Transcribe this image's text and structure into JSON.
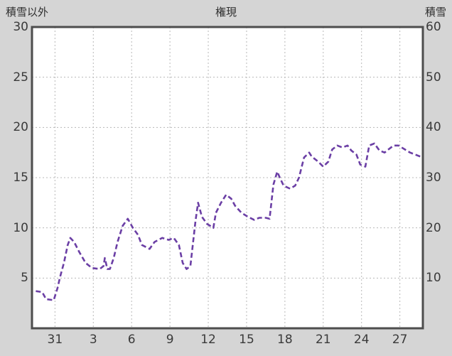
{
  "labels": {
    "left_axis": "積雪以外",
    "title": "権現",
    "right_axis": "積雪"
  },
  "colors": {
    "page_background": "#d5d5d5",
    "plot_background": "#ffffff",
    "frame": "#4d4d4d",
    "grid": "#b8b8b8",
    "text": "#3a3a3a",
    "line": "#6b3fa5"
  },
  "chart_data": {
    "type": "line",
    "title": "権現",
    "left_axis_label": "積雪以外",
    "right_axis_label": "積雪",
    "x_tick_labels": [
      "31",
      "3",
      "6",
      "9",
      "12",
      "15",
      "18",
      "21",
      "24",
      "27"
    ],
    "x_tick_positions": [
      1.8,
      4.8,
      7.8,
      10.8,
      13.8,
      16.8,
      19.8,
      22.8,
      25.8,
      28.8
    ],
    "xlim": [
      0,
      30.6
    ],
    "left_ylim": [
      0,
      30
    ],
    "left_yticks": [
      5,
      10,
      15,
      20,
      25,
      30
    ],
    "right_ylim": [
      0,
      60
    ],
    "right_yticks": [
      10,
      20,
      30,
      40,
      50,
      60
    ],
    "grid": true,
    "line_style": "dashed",
    "series": [
      {
        "name": "積雪",
        "points": [
          [
            0.3,
            3.7
          ],
          [
            0.8,
            3.6
          ],
          [
            1.1,
            2.9
          ],
          [
            1.7,
            2.8
          ],
          [
            2.0,
            4.0
          ],
          [
            2.2,
            5.1
          ],
          [
            2.5,
            6.5
          ],
          [
            2.8,
            8.3
          ],
          [
            3.0,
            9.0
          ],
          [
            3.3,
            8.6
          ],
          [
            3.7,
            7.6
          ],
          [
            4.2,
            6.5
          ],
          [
            4.7,
            6.0
          ],
          [
            5.3,
            5.9
          ],
          [
            5.6,
            6.2
          ],
          [
            5.7,
            7.0
          ],
          [
            5.9,
            5.9
          ],
          [
            6.1,
            5.9
          ],
          [
            6.4,
            7.0
          ],
          [
            6.7,
            8.6
          ],
          [
            7.1,
            10.2
          ],
          [
            7.5,
            10.9
          ],
          [
            7.9,
            10.0
          ],
          [
            8.3,
            9.3
          ],
          [
            8.6,
            8.3
          ],
          [
            9.2,
            7.9
          ],
          [
            9.6,
            8.6
          ],
          [
            10.2,
            9.0
          ],
          [
            10.7,
            8.8
          ],
          [
            11.1,
            9.0
          ],
          [
            11.5,
            8.3
          ],
          [
            11.8,
            6.5
          ],
          [
            12.1,
            5.9
          ],
          [
            12.4,
            6.2
          ],
          [
            12.8,
            10.7
          ],
          [
            13.0,
            12.5
          ],
          [
            13.3,
            11.1
          ],
          [
            13.7,
            10.4
          ],
          [
            14.2,
            10.0
          ],
          [
            14.4,
            11.5
          ],
          [
            14.8,
            12.5
          ],
          [
            15.2,
            13.3
          ],
          [
            15.6,
            12.9
          ],
          [
            15.9,
            12.2
          ],
          [
            16.4,
            11.5
          ],
          [
            16.9,
            11.1
          ],
          [
            17.4,
            10.8
          ],
          [
            17.8,
            11.0
          ],
          [
            18.3,
            11.0
          ],
          [
            18.6,
            10.9
          ],
          [
            18.9,
            14.3
          ],
          [
            19.2,
            15.6
          ],
          [
            19.4,
            15.0
          ],
          [
            19.7,
            14.2
          ],
          [
            20.2,
            13.9
          ],
          [
            20.6,
            14.2
          ],
          [
            20.9,
            15.0
          ],
          [
            21.3,
            17.0
          ],
          [
            21.7,
            17.5
          ],
          [
            21.9,
            17.1
          ],
          [
            22.4,
            16.6
          ],
          [
            22.8,
            16.1
          ],
          [
            23.2,
            16.6
          ],
          [
            23.5,
            17.8
          ],
          [
            23.9,
            18.2
          ],
          [
            24.3,
            18.0
          ],
          [
            24.7,
            18.2
          ],
          [
            25.0,
            17.7
          ],
          [
            25.4,
            17.3
          ],
          [
            25.7,
            16.3
          ],
          [
            26.1,
            16.1
          ],
          [
            26.4,
            18.2
          ],
          [
            26.8,
            18.4
          ],
          [
            27.2,
            17.7
          ],
          [
            27.6,
            17.5
          ],
          [
            27.9,
            17.8
          ],
          [
            28.3,
            18.2
          ],
          [
            28.7,
            18.2
          ],
          [
            29.2,
            17.8
          ],
          [
            29.6,
            17.5
          ],
          [
            30.0,
            17.3
          ],
          [
            30.4,
            17.1
          ]
        ]
      }
    ]
  }
}
